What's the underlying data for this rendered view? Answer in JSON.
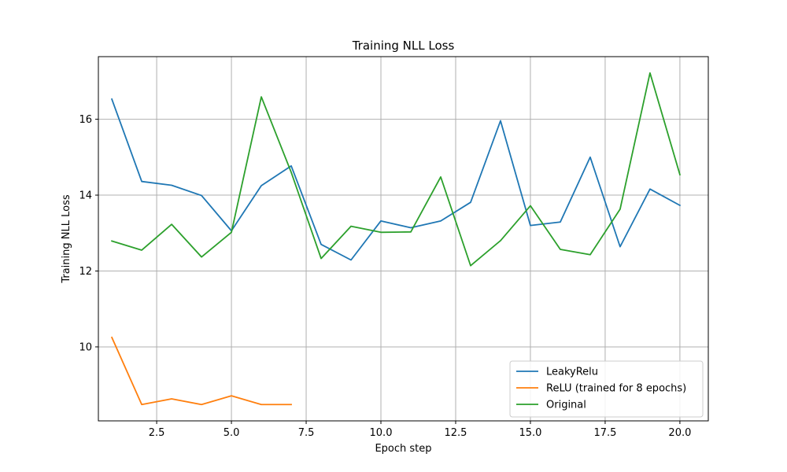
{
  "chart_data": {
    "type": "line",
    "title": "Training NLL Loss",
    "xlabel": "Epoch step",
    "ylabel": "Training NLL Loss",
    "xlim": [
      0.55,
      20.95
    ],
    "ylim": [
      8.05,
      17.65
    ],
    "xticks": [
      2.5,
      5.0,
      7.5,
      10.0,
      12.5,
      15.0,
      17.5,
      20.0
    ],
    "xtick_labels": [
      "2.5",
      "5.0",
      "7.5",
      "10.0",
      "12.5",
      "15.0",
      "17.5",
      "20.0"
    ],
    "yticks": [
      10,
      12,
      14,
      16
    ],
    "ytick_labels": [
      "10",
      "12",
      "14",
      "16"
    ],
    "grid": true,
    "legend_position": "bottom-right",
    "series": [
      {
        "name": "LeakyRelu",
        "color": "#1f77b4",
        "x": [
          1,
          2,
          3,
          4,
          5,
          6,
          7,
          8,
          9,
          10,
          11,
          12,
          13,
          14,
          15,
          16,
          17,
          18,
          19,
          20
        ],
        "y": [
          16.53,
          14.36,
          14.26,
          13.99,
          13.06,
          14.25,
          14.77,
          12.7,
          12.29,
          13.32,
          13.14,
          13.32,
          13.81,
          15.96,
          13.2,
          13.29,
          15.0,
          12.64,
          14.16,
          13.73
        ]
      },
      {
        "name": "ReLU (trained for 8 epochs)",
        "color": "#ff7f0e",
        "x": [
          1,
          2,
          3,
          4,
          5,
          6,
          7
        ],
        "y": [
          10.25,
          8.48,
          8.63,
          8.48,
          8.71,
          8.48,
          8.48
        ]
      },
      {
        "name": "Original",
        "color": "#2ca02c",
        "x": [
          1,
          2,
          3,
          4,
          5,
          6,
          7,
          8,
          9,
          10,
          11,
          12,
          13,
          14,
          15,
          16,
          17,
          18,
          19,
          20
        ],
        "y": [
          12.79,
          12.55,
          13.23,
          12.37,
          13.02,
          16.59,
          14.6,
          12.33,
          13.18,
          13.02,
          13.03,
          14.48,
          12.14,
          12.8,
          13.72,
          12.57,
          12.43,
          13.63,
          17.22,
          14.54
        ]
      }
    ]
  }
}
